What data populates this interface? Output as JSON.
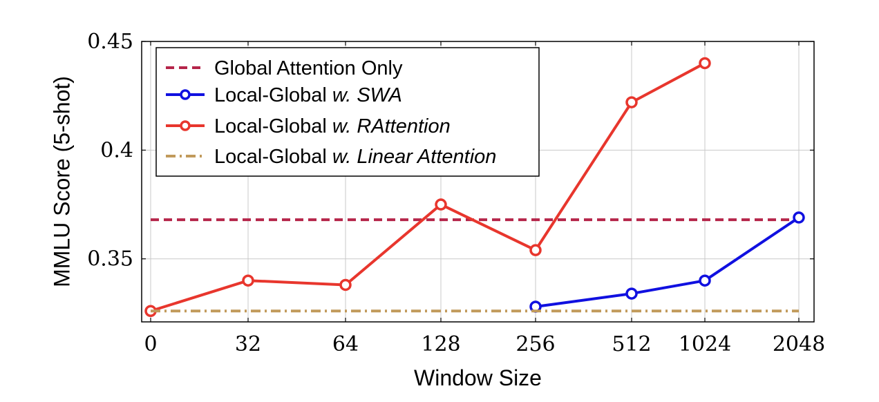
{
  "chart_data": {
    "type": "line",
    "title": "",
    "xlabel": "Window Size",
    "ylabel": "MMLU Score (5-shot)",
    "x": [
      0,
      32,
      64,
      128,
      256,
      512,
      1024,
      2048
    ],
    "x_tick_labels": [
      "0",
      "32",
      "64",
      "128",
      "256",
      "512",
      "1024",
      "2048"
    ],
    "x_scale": "categorical (evenly spaced)",
    "y_ticks": [
      0.35,
      0.4,
      0.45
    ],
    "y_tick_labels": [
      "0.35",
      "0.4",
      "0.45"
    ],
    "ylim": [
      0.321,
      0.45
    ],
    "grid": true,
    "legend_position": "top-left",
    "series": [
      {
        "name_prefix": "Global Attention Only",
        "name_suffix": "",
        "style": "dashed",
        "color": "#b5254a",
        "markers": false,
        "x": [
          0,
          2048
        ],
        "values": [
          0.368,
          0.368
        ]
      },
      {
        "name_prefix": "Local-Global ",
        "name_suffix": "w. SWA",
        "style": "solid",
        "color": "#1010e0",
        "markers": true,
        "x": [
          256,
          512,
          1024,
          2048
        ],
        "values": [
          0.328,
          0.334,
          0.34,
          0.369
        ]
      },
      {
        "name_prefix": "Local-Global ",
        "name_suffix": "w. RAttention",
        "style": "solid",
        "color": "#e8362d",
        "markers": true,
        "x": [
          0,
          32,
          64,
          128,
          256,
          512,
          1024
        ],
        "values": [
          0.326,
          0.34,
          0.338,
          0.375,
          0.354,
          0.422,
          0.44
        ]
      },
      {
        "name_prefix": "Local-Global ",
        "name_suffix": "w. Linear Attention",
        "style": "dashdot",
        "color": "#c19a5b",
        "markers": false,
        "x": [
          0,
          2048
        ],
        "values": [
          0.326,
          0.326
        ]
      }
    ]
  }
}
